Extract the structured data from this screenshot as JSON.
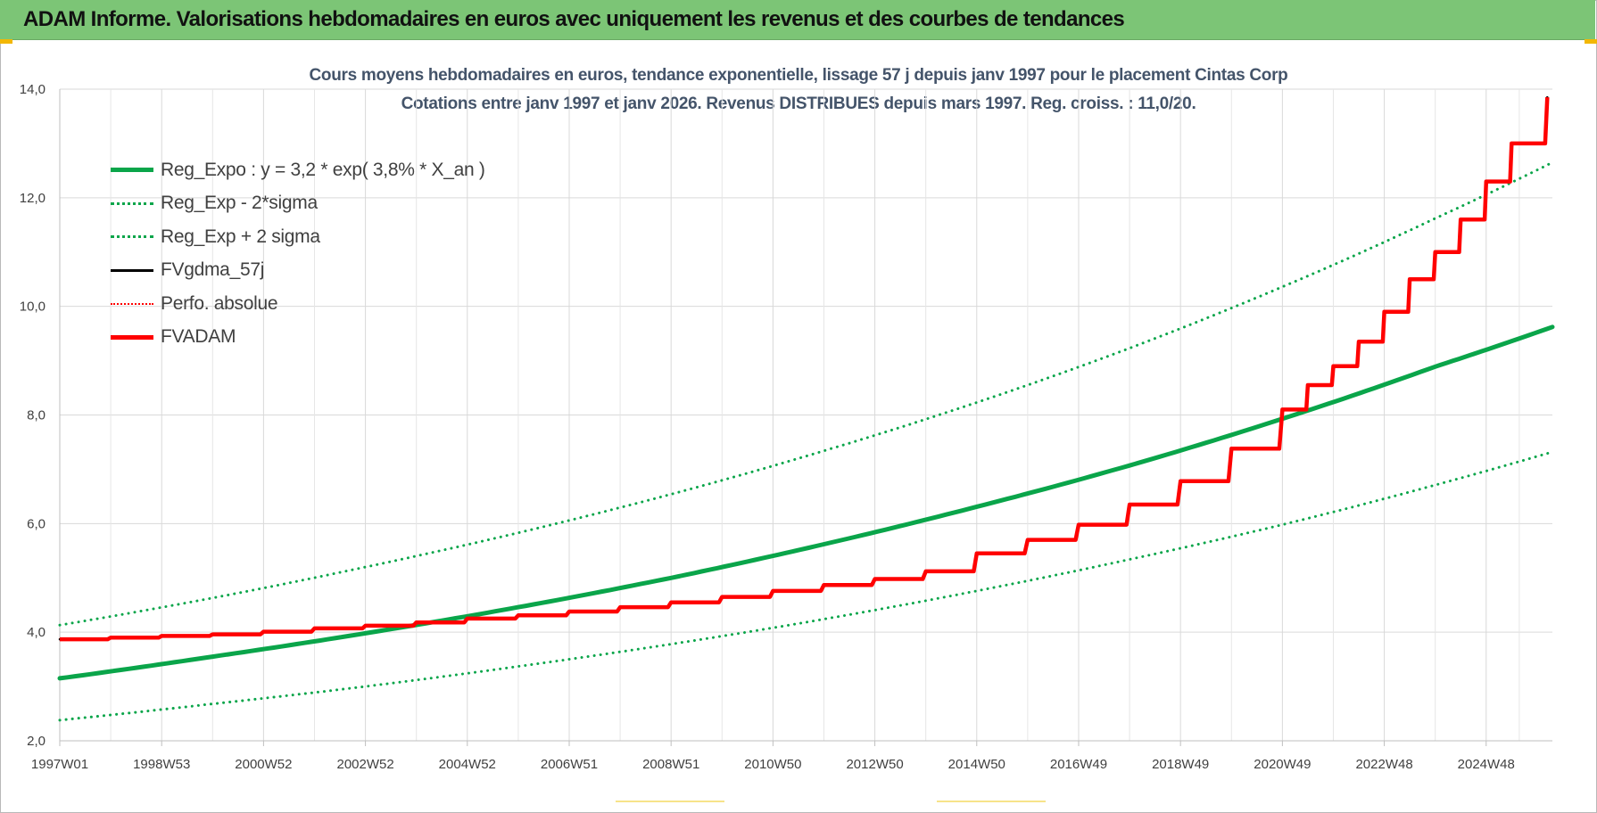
{
  "header": {
    "banner_title": "ADAM Informe. Valorisations hebdomadaires en euros avec uniquement les revenus et des courbes de tendances"
  },
  "chart_data": {
    "type": "line",
    "title": "Cours moyens hebdomadaires en euros, tendance exponentielle, lissage 57 j depuis janv 1997 pour le placement Cintas Corp",
    "subtitle": "Cotations entre janv 1997 et janv 2026. Revenus DISTRIBUES depuis mars 1997. Reg. croiss. : 11,0/20.",
    "xlabel": "",
    "ylabel": "",
    "ylim": [
      2.0,
      14.0
    ],
    "yticks": [
      "2,0",
      "4,0",
      "6,0",
      "8,0",
      "10,0",
      "12,0",
      "14,0"
    ],
    "xlim": [
      1997.0,
      2026.3
    ],
    "xticks": [
      {
        "label": "1997W01",
        "x": 1997.0
      },
      {
        "label": "1998W53",
        "x": 1999.0
      },
      {
        "label": "2000W52",
        "x": 2001.0
      },
      {
        "label": "2002W52",
        "x": 2003.0
      },
      {
        "label": "2004W52",
        "x": 2005.0
      },
      {
        "label": "2006W51",
        "x": 2007.0
      },
      {
        "label": "2008W51",
        "x": 2009.0
      },
      {
        "label": "2010W50",
        "x": 2011.0
      },
      {
        "label": "2012W50",
        "x": 2013.0
      },
      {
        "label": "2014W50",
        "x": 2015.0
      },
      {
        "label": "2016W49",
        "x": 2017.0
      },
      {
        "label": "2018W49",
        "x": 2019.0
      },
      {
        "label": "2020W49",
        "x": 2021.0
      },
      {
        "label": "2022W48",
        "x": 2023.0
      },
      {
        "label": "2024W48",
        "x": 2025.0
      }
    ],
    "grid": true,
    "legend_position": "top-left",
    "series": [
      {
        "name": "Reg_Expo : y = 3,2 * exp( 3,8% *  X_an )",
        "color": "#0aa54a",
        "style": "solid-thick",
        "x": [
          1997,
          2000,
          2003,
          2006,
          2009,
          2012,
          2015,
          2018,
          2021,
          2024,
          2026.3
        ],
        "y": [
          3.15,
          3.55,
          3.98,
          4.46,
          5.0,
          5.62,
          6.31,
          7.07,
          7.93,
          8.89,
          9.62
        ]
      },
      {
        "name": "Reg_Exp - 2*sigma",
        "color": "#0aa54a",
        "style": "dotted",
        "x": [
          1997,
          2000,
          2003,
          2006,
          2009,
          2012,
          2015,
          2018,
          2021,
          2024,
          2026.3
        ],
        "y": [
          2.38,
          2.68,
          3.0,
          3.37,
          3.78,
          4.24,
          4.76,
          5.34,
          5.98,
          6.71,
          7.32
        ]
      },
      {
        "name": "Reg_Exp + 2 sigma",
        "color": "#0aa54a",
        "style": "dotted",
        "x": [
          1997,
          2000,
          2003,
          2006,
          2009,
          2012,
          2015,
          2018,
          2021,
          2024,
          2026.3
        ],
        "y": [
          4.13,
          4.63,
          5.2,
          5.83,
          6.54,
          7.34,
          8.23,
          9.23,
          10.36,
          11.62,
          12.65
        ]
      },
      {
        "name": "FVgdma_57j",
        "color": "#000000",
        "style": "solid",
        "x": [
          1997,
          1998,
          1999,
          2000,
          2001,
          2002,
          2003,
          2004,
          2005,
          2006,
          2007,
          2008,
          2009,
          2010,
          2011,
          2012,
          2013,
          2014,
          2015,
          2016,
          2017,
          2018,
          2019,
          2020,
          2021,
          2021.5,
          2022,
          2022.5,
          2023,
          2023.5,
          2024,
          2024.5,
          2025,
          2025.5,
          2026.2
        ],
        "y": [
          3.87,
          3.9,
          3.93,
          3.96,
          4.01,
          4.07,
          4.12,
          4.18,
          4.25,
          4.31,
          4.38,
          4.46,
          4.55,
          4.65,
          4.76,
          4.87,
          4.98,
          5.12,
          5.45,
          5.7,
          5.98,
          6.35,
          6.78,
          7.38,
          8.1,
          8.55,
          8.9,
          9.35,
          9.9,
          10.5,
          11.0,
          11.6,
          12.3,
          13.0,
          13.85
        ]
      },
      {
        "name": "Perfo. absolue",
        "color": "#ff0000",
        "style": "dotted",
        "x": [],
        "y": []
      },
      {
        "name": "FVADAM",
        "color": "#ff0000",
        "style": "step-thick",
        "x": [
          1997,
          1998,
          1999,
          2000,
          2001,
          2002,
          2003,
          2004,
          2005,
          2006,
          2007,
          2008,
          2009,
          2010,
          2011,
          2012,
          2013,
          2014,
          2015,
          2016,
          2017,
          2018,
          2019,
          2020,
          2021,
          2021.5,
          2022,
          2022.5,
          2023,
          2023.5,
          2024,
          2024.5,
          2025,
          2025.5,
          2026.2
        ],
        "y": [
          3.87,
          3.9,
          3.93,
          3.96,
          4.01,
          4.07,
          4.12,
          4.18,
          4.25,
          4.31,
          4.38,
          4.46,
          4.55,
          4.65,
          4.76,
          4.87,
          4.98,
          5.12,
          5.45,
          5.7,
          5.98,
          6.35,
          6.78,
          7.38,
          8.1,
          8.55,
          8.9,
          9.35,
          9.9,
          10.5,
          11.0,
          11.6,
          12.3,
          13.0,
          13.85
        ]
      }
    ]
  }
}
